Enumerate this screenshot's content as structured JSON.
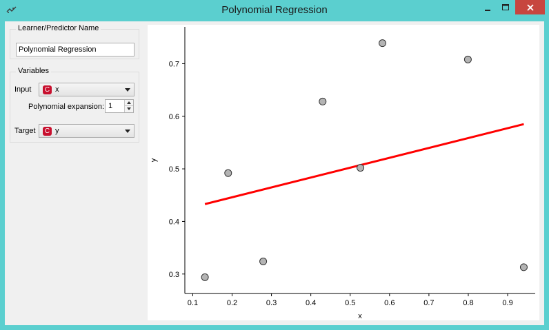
{
  "window": {
    "title": "Polynomial Regression"
  },
  "learner": {
    "group_title": "Learner/Predictor Name",
    "name_value": "Polynomial Regression"
  },
  "variables": {
    "group_title": "Variables",
    "input_label": "Input",
    "input_badge": "C",
    "input_value": "x",
    "expansion_label": "Polynomial expansion:",
    "expansion_value": "1",
    "target_label": "Target",
    "target_badge": "C",
    "target_value": "y"
  },
  "icons": [
    "app-scatter-icon",
    "minimize-icon",
    "maximize-icon",
    "close-icon",
    "chevron-down-icon",
    "spin-up-icon",
    "spin-down-icon"
  ],
  "colors": {
    "titlebar": "#5bcfcf",
    "close_button": "#c7463f",
    "regression_line": "#ff0000",
    "point_fill": "#b4b4b4",
    "variable_badge": "#c8102e"
  },
  "chart_data": {
    "type": "scatter",
    "title": "",
    "xlabel": "x",
    "ylabel": "y",
    "xlim": [
      0.08,
      0.97
    ],
    "ylim": [
      0.263,
      0.77
    ],
    "xticks": [
      "0.1",
      "0.2",
      "0.3",
      "0.4",
      "0.5",
      "0.6",
      "0.7",
      "0.8",
      "0.9"
    ],
    "yticks": [
      "0.3",
      "0.4",
      "0.5",
      "0.6",
      "0.7"
    ],
    "grid": false,
    "points": [
      {
        "x": 0.131,
        "y": 0.294
      },
      {
        "x": 0.19,
        "y": 0.492
      },
      {
        "x": 0.279,
        "y": 0.324
      },
      {
        "x": 0.43,
        "y": 0.628
      },
      {
        "x": 0.526,
        "y": 0.502
      },
      {
        "x": 0.582,
        "y": 0.739
      },
      {
        "x": 0.799,
        "y": 0.708
      },
      {
        "x": 0.941,
        "y": 0.313
      }
    ],
    "line": {
      "x": [
        0.131,
        0.941
      ],
      "y": [
        0.433,
        0.585
      ]
    }
  }
}
